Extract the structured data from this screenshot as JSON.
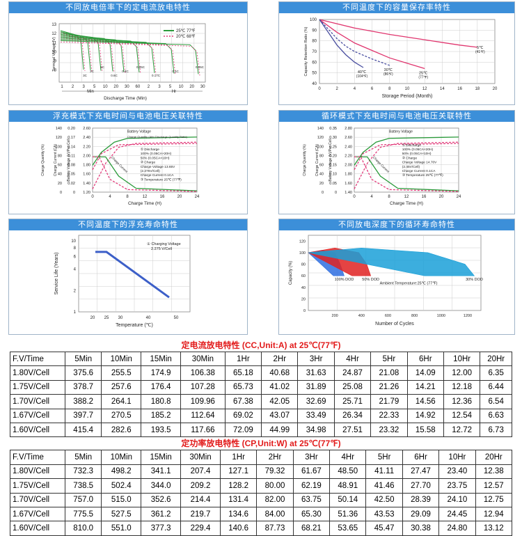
{
  "panels": {
    "p1": {
      "title": "不同放电倍率下的定电流放电特性"
    },
    "p2": {
      "title": "不同温度下的容量保存率特性"
    },
    "p3": {
      "title": "浮充模式下充电时间与电池电压关联特性"
    },
    "p4": {
      "title": "循环模式下充电时间与电池电压关联特性"
    },
    "p5": {
      "title": "不同温度下的浮充寿命特性"
    },
    "p6": {
      "title": "不同放电深度下的循环寿命特性"
    }
  },
  "chart_data": [
    {
      "type": "line",
      "id": "discharge",
      "ylabel": "Terminal Voltage (V)",
      "xlabel": "Discharge Time (Min)",
      "yticks": [
        "13",
        "12",
        "11",
        "10",
        "9",
        "8"
      ],
      "xticks": [
        "1",
        "2",
        "3",
        "5",
        "10",
        "20",
        "30",
        "60",
        "2",
        "3",
        "5",
        "10",
        "20",
        "30"
      ],
      "min_label": "Min",
      "hr_label": "Hr",
      "legend": [
        "25℃ 77℉",
        "20℃ 68℉"
      ],
      "rate_labels": [
        "3C",
        "2C",
        "1C",
        "0.6C",
        "0.4C",
        "0.25C",
        "0.17C",
        "0.1C",
        "0.05C"
      ]
    },
    {
      "type": "line",
      "id": "retention",
      "ylabel": "Capacity Retention Ratio (%)",
      "xlabel": "Storage Period (Month)",
      "yticks": [
        40,
        50,
        60,
        70,
        80,
        90,
        100
      ],
      "xticks": [
        0,
        2,
        4,
        6,
        8,
        10,
        12,
        14,
        16,
        18,
        20
      ],
      "ylim": [
        40,
        100
      ],
      "xlim": [
        0,
        20
      ],
      "series": [
        {
          "name": "5℃ (41℉)",
          "x": [
            0,
            4,
            8,
            12,
            16,
            18
          ],
          "y": [
            100,
            92,
            86,
            81,
            76,
            74
          ]
        },
        {
          "name": "25℃ (77℉)",
          "x": [
            0,
            2,
            4,
            6,
            8,
            10,
            12
          ],
          "y": [
            100,
            88,
            78,
            71,
            64,
            59,
            54
          ]
        },
        {
          "name": "30℃ (86℉)",
          "x": [
            0,
            1,
            2,
            3,
            4,
            6,
            8
          ],
          "y": [
            100,
            91,
            82,
            75,
            70,
            63,
            57
          ]
        },
        {
          "name": "40℃ (104℉)",
          "x": [
            0,
            1,
            2,
            3,
            4,
            5
          ],
          "y": [
            100,
            88,
            76,
            67,
            60,
            55
          ]
        }
      ]
    },
    {
      "type": "line",
      "id": "float_charge",
      "xlabel": "Charge Time (H)",
      "ylabels": [
        "Charge Quantity (%)",
        "Charge Current (CA)",
        "Battery Voltage (V)/Per Cell"
      ],
      "xticks": [
        0,
        4,
        8,
        12,
        16,
        20,
        24
      ],
      "charge_qty_ticks": [
        0,
        20,
        40,
        60,
        80,
        100,
        120,
        140
      ],
      "current_ticks": [
        "0",
        "0.02",
        "0.05",
        "0.08",
        "0.11",
        "0.14",
        "0.17",
        "0.20"
      ],
      "voltage_ticks": [
        "1.20",
        "1.40",
        "1.60",
        "1.80",
        "2.00",
        "2.20",
        "2.40",
        "2.60"
      ],
      "annotations": [
        "Battery Voltage",
        "Charge Quantity (Afer Discharge Quantity Ratio)",
        "① Discharge",
        "100% (0.05CA×20H)",
        "50% (0.05CA×10H)",
        "② Charge",
        "Charge Voltage 13.65V",
        "(2.275V/Cell)",
        "Charge Current 0.1CA",
        "③ Temperature 25℃ (77℉)",
        "Charge Current"
      ]
    },
    {
      "type": "line",
      "id": "cycle_charge",
      "xlabel": "Charge Time (H)",
      "ylabels": [
        "Charge Quantity (%)",
        "Charge Current (CA)",
        "Battery Voltage (V)/Per Cell"
      ],
      "xticks": [
        0,
        4,
        8,
        12,
        16,
        20,
        24
      ],
      "charge_qty_ticks": [
        0,
        20,
        40,
        60,
        80,
        100,
        120,
        140
      ],
      "current_ticks": [
        "0",
        "0.05",
        "0.10",
        "0.15",
        "0.20",
        "0.25",
        "0.30",
        "0.35"
      ],
      "voltage_ticks": [
        "1.40",
        "1.60",
        "1.80",
        "2.00",
        "2.20",
        "2.40",
        "2.60",
        "2.80"
      ],
      "annotations": [
        "Battery Voltage",
        "① Discharge",
        "100% (0.05CA×20H)",
        "50% (0.05CA×10H)",
        "② Charge",
        "Charge Voltage 14.70V",
        "(2.45V/Cell)",
        "Charge Current 0.1CA",
        "③ Temperature 25℃ (77℉)",
        "Charge Current"
      ]
    },
    {
      "type": "line",
      "id": "float_life",
      "ylabel": "Service Life (Years)",
      "xlabel": "Temperature (℃)",
      "yticks": [
        1,
        2,
        4,
        6,
        8,
        10
      ],
      "xticks": [
        20,
        25,
        30,
        40,
        50
      ],
      "annotation": [
        "① Charging Voltage",
        "2.275 V/Cell"
      ],
      "series": [
        {
          "x": [
            21,
            25,
            47.5
          ],
          "y": [
            7,
            7,
            1.6
          ]
        }
      ]
    },
    {
      "type": "area",
      "id": "cycle_life",
      "ylabel": "Capacity (%)",
      "xlabel": "Number of Cycles",
      "yticks": [
        0,
        20,
        40,
        60,
        80,
        100,
        120
      ],
      "xticks": [
        200,
        400,
        600,
        800,
        1000,
        1200
      ],
      "annotation": "Ambient Temperature:25℃ (77℉)",
      "series": [
        {
          "name": "100% DOD",
          "color": "#2f6fe0",
          "x": [
            0,
            100,
            200,
            240,
            270
          ],
          "y": [
            100,
            104,
            100,
            80,
            60
          ]
        },
        {
          "name": "50% DOD",
          "color": "#e02222",
          "x": [
            0,
            200,
            380,
            440,
            470
          ],
          "y": [
            100,
            108,
            100,
            80,
            60
          ]
        },
        {
          "name": "30% DOD",
          "color": "#1aa0d8",
          "x": [
            0,
            400,
            900,
            1180,
            1250
          ],
          "y": [
            100,
            108,
            100,
            80,
            60
          ]
        }
      ]
    }
  ],
  "tables": {
    "cc": {
      "title": "定电流放电特性 (CC,Unit:A) at 25℃(77℉)",
      "headers": [
        "F.V/Time",
        "5Min",
        "10Min",
        "15Min",
        "30Min",
        "1Hr",
        "2Hr",
        "3Hr",
        "4Hr",
        "5Hr",
        "6Hr",
        "10Hr",
        "20Hr"
      ],
      "rows": [
        [
          "1.80V/Cell",
          "375.6",
          "255.5",
          "174.9",
          "106.38",
          "65.18",
          "40.68",
          "31.63",
          "24.87",
          "21.08",
          "14.09",
          "12.00",
          "6.35"
        ],
        [
          "1.75V/Cell",
          "378.7",
          "257.6",
          "176.4",
          "107.28",
          "65.73",
          "41.02",
          "31.89",
          "25.08",
          "21.26",
          "14.21",
          "12.18",
          "6.44"
        ],
        [
          "1.70V/Cell",
          "388.2",
          "264.1",
          "180.8",
          "109.96",
          "67.38",
          "42.05",
          "32.69",
          "25.71",
          "21.79",
          "14.56",
          "12.36",
          "6.54"
        ],
        [
          "1.67V/Cell",
          "397.7",
          "270.5",
          "185.2",
          "112.64",
          "69.02",
          "43.07",
          "33.49",
          "26.34",
          "22.33",
          "14.92",
          "12.54",
          "6.63"
        ],
        [
          "1.60V/Cell",
          "415.4",
          "282.6",
          "193.5",
          "117.66",
          "72.09",
          "44.99",
          "34.98",
          "27.51",
          "23.32",
          "15.58",
          "12.72",
          "6.73"
        ]
      ]
    },
    "cp": {
      "title": "定功率放电特性 (CP,Unit:W) at 25℃(77℉)",
      "headers": [
        "F.V/Time",
        "5Min",
        "10Min",
        "15Min",
        "30Min",
        "1Hr",
        "2Hr",
        "3Hr",
        "4Hr",
        "5Hr",
        "6Hr",
        "10Hr",
        "20Hr"
      ],
      "rows": [
        [
          "1.80V/Cell",
          "732.3",
          "498.2",
          "341.1",
          "207.4",
          "127.1",
          "79.32",
          "61.67",
          "48.50",
          "41.11",
          "27.47",
          "23.40",
          "12.38"
        ],
        [
          "1.75V/Cell",
          "738.5",
          "502.4",
          "344.0",
          "209.2",
          "128.2",
          "80.00",
          "62.19",
          "48.91",
          "41.46",
          "27.70",
          "23.75",
          "12.57"
        ],
        [
          "1.70V/Cell",
          "757.0",
          "515.0",
          "352.6",
          "214.4",
          "131.4",
          "82.00",
          "63.75",
          "50.14",
          "42.50",
          "28.39",
          "24.10",
          "12.75"
        ],
        [
          "1.67V/Cell",
          "775.5",
          "527.5",
          "361.2",
          "219.7",
          "134.6",
          "84.00",
          "65.30",
          "51.36",
          "43.53",
          "29.09",
          "24.45",
          "12.94"
        ],
        [
          "1.60V/Cell",
          "810.0",
          "551.0",
          "377.3",
          "229.4",
          "140.6",
          "87.73",
          "68.21",
          "53.65",
          "45.47",
          "30.38",
          "24.80",
          "13.12"
        ]
      ]
    }
  }
}
